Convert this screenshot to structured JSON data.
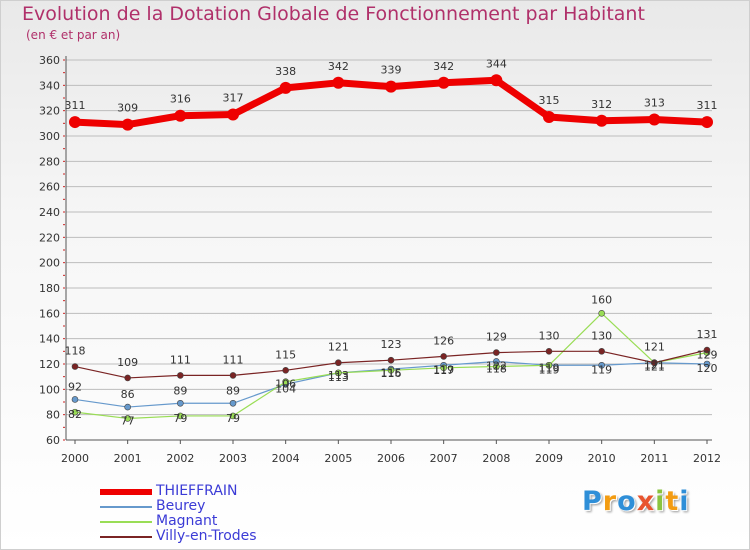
{
  "page": {
    "title": "Evolution de la Dotation Globale de Fonctionnement par Habitant",
    "subtitle": "(en € et par an)"
  },
  "colors": {
    "title": "#b0306a",
    "thieffrain": "#ee0000",
    "beurey": "#6699cc",
    "magnant": "#99dd55",
    "villy": "#7a2424",
    "grid": "#bdbdbd",
    "legend_text": "#3b3bd6"
  },
  "legend": [
    {
      "label": "THIEFFRAIN",
      "color": "#ee0000"
    },
    {
      "label": "Beurey",
      "color": "#6699cc"
    },
    {
      "label": "Magnant",
      "color": "#99dd55"
    },
    {
      "label": "Villy-en-Trodes",
      "color": "#7a2424"
    }
  ],
  "logo": {
    "letters": [
      {
        "ch": "P",
        "color": "#2f8fd8"
      },
      {
        "ch": "r",
        "color": "#f39c12"
      },
      {
        "ch": "o",
        "color": "#2f8fd8"
      },
      {
        "ch": "x",
        "color": "#e8542e"
      },
      {
        "ch": "i",
        "color": "#8ac43f"
      },
      {
        "ch": "t",
        "color": "#f39c12"
      },
      {
        "ch": "i",
        "color": "#2f8fd8"
      }
    ]
  },
  "chart_data": {
    "type": "line",
    "title": "Evolution de la Dotation Globale de Fonctionnement par Habitant",
    "subtitle": "(en € et par an)",
    "xlabel": "",
    "ylabel": "",
    "x": [
      "2000",
      "2001",
      "2002",
      "2003",
      "2004",
      "2005",
      "2006",
      "2007",
      "2008",
      "2009",
      "2010",
      "2011",
      "2012"
    ],
    "ylim": [
      60,
      360
    ],
    "yticks": [
      60,
      80,
      100,
      120,
      140,
      160,
      180,
      200,
      220,
      240,
      260,
      280,
      300,
      320,
      340,
      360
    ],
    "grid": true,
    "legend_position": "bottom-left",
    "series": [
      {
        "name": "THIEFFRAIN",
        "color": "#ee0000",
        "values": [
          311,
          309,
          316,
          317,
          338,
          342,
          339,
          342,
          344,
          315,
          312,
          313,
          311
        ],
        "labels": [
          "311",
          "309",
          "316",
          "317",
          "338",
          "342",
          "339",
          "342",
          "344",
          "315",
          "312",
          "313",
          "311"
        ]
      },
      {
        "name": "Beurey",
        "color": "#6699cc",
        "values": [
          92,
          86,
          89,
          89,
          104,
          113,
          116,
          119,
          122,
          119,
          119,
          121,
          120
        ],
        "labels": [
          "92",
          "86",
          "89",
          "89",
          "104",
          "113",
          "116",
          "119",
          "122",
          "119",
          "119",
          "121",
          "120"
        ]
      },
      {
        "name": "Magnant",
        "color": "#99dd55",
        "values": [
          82,
          77,
          79,
          79,
          106,
          113,
          115,
          117,
          118,
          119,
          160,
          121,
          129
        ],
        "labels": [
          "82",
          "77",
          "79",
          "79",
          "106",
          "113",
          "115",
          "117",
          "118",
          "119",
          "160",
          "121",
          "129"
        ]
      },
      {
        "name": "Villy-en-Trodes",
        "color": "#7a2424",
        "values": [
          118,
          109,
          111,
          111,
          115,
          121,
          123,
          126,
          129,
          130,
          130,
          121,
          131
        ],
        "labels": [
          "118",
          "109",
          "111",
          "111",
          "115",
          "121",
          "123",
          "126",
          "129",
          "130",
          "130",
          "121",
          "131"
        ]
      }
    ]
  }
}
